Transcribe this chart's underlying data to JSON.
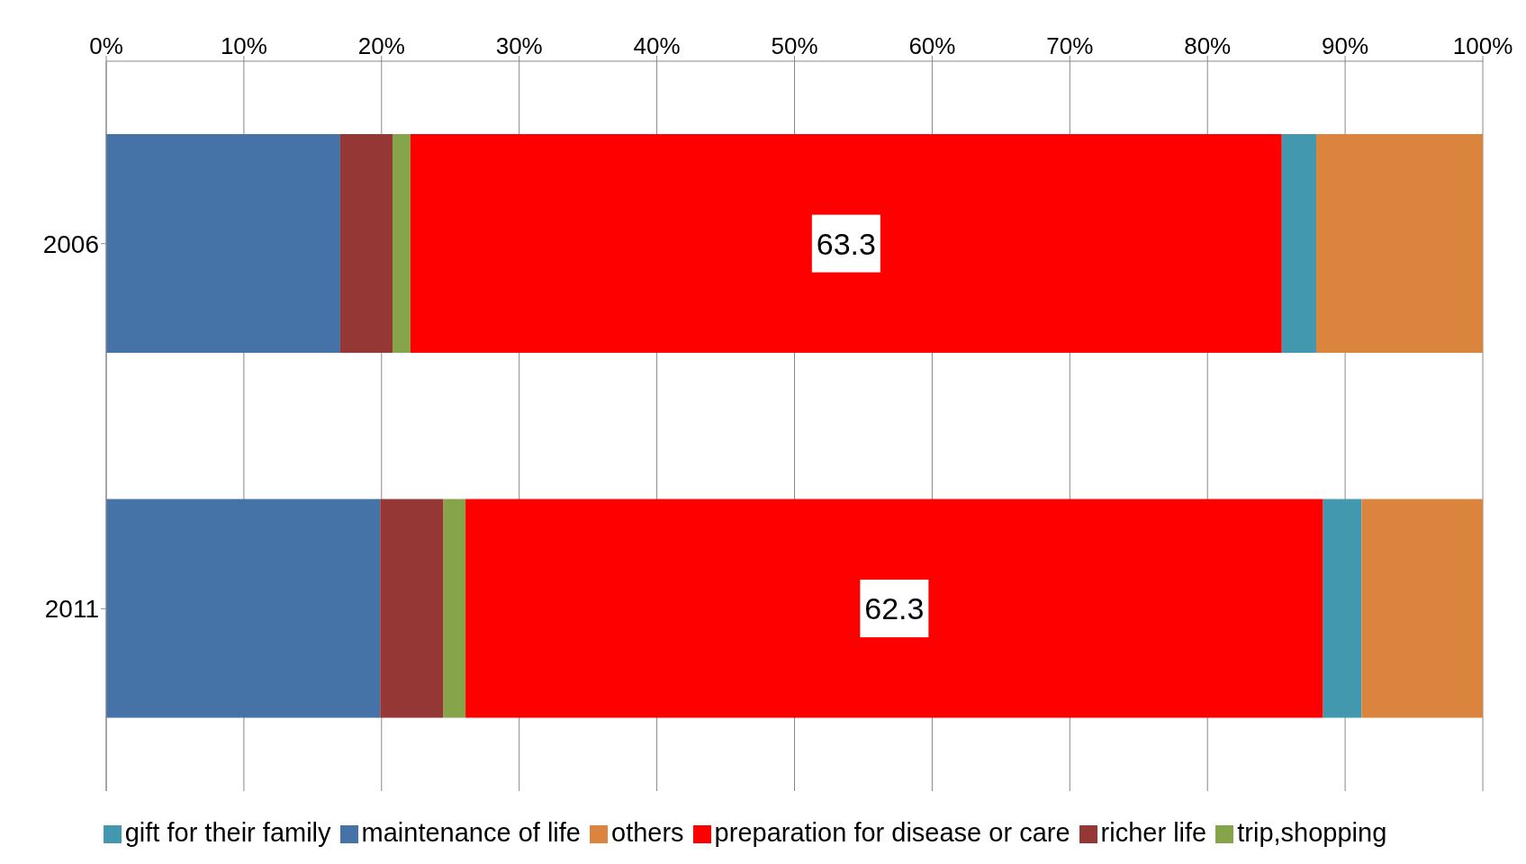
{
  "chart_data": {
    "type": "bar",
    "orientation": "horizontal",
    "stacked": true,
    "categories": [
      "2006",
      "2011"
    ],
    "series": [
      {
        "name": "maintenance of life",
        "color": "#4572a7",
        "values": [
          17.0,
          19.9
        ]
      },
      {
        "name": "richer life",
        "color": "#953735",
        "values": [
          3.8,
          4.6
        ]
      },
      {
        "name": "trip,shopping",
        "color": "#86a44a",
        "values": [
          1.3,
          1.6
        ]
      },
      {
        "name": "preparation for disease or care",
        "color": "#ff0000",
        "values": [
          63.3,
          62.3
        ],
        "value_labels": [
          "63.3",
          "62.3"
        ]
      },
      {
        "name": "gift for their family",
        "color": "#4198af",
        "values": [
          2.5,
          2.8
        ]
      },
      {
        "name": "others",
        "color": "#db843d",
        "values": [
          12.1,
          8.8
        ]
      }
    ],
    "xlim": [
      0,
      100
    ],
    "xticks": [
      {
        "value": 0,
        "label": "0%"
      },
      {
        "value": 10,
        "label": "10%"
      },
      {
        "value": 20,
        "label": "20%"
      },
      {
        "value": 30,
        "label": "30%"
      },
      {
        "value": 40,
        "label": "40%"
      },
      {
        "value": 50,
        "label": "50%"
      },
      {
        "value": 60,
        "label": "60%"
      },
      {
        "value": 70,
        "label": "70%"
      },
      {
        "value": 80,
        "label": "80%"
      },
      {
        "value": 90,
        "label": "90%"
      },
      {
        "value": 100,
        "label": "100%"
      }
    ],
    "grid": "x",
    "legend": "bottom"
  }
}
